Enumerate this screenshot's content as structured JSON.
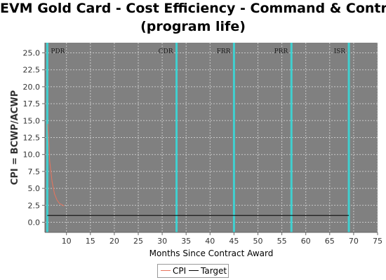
{
  "chart_data": {
    "type": "line",
    "title_line1": "EVM Gold Card - Cost Efficiency - Command & Control",
    "title_line2": "(program life)",
    "xlabel": "Months Since Contract Award",
    "ylabel": "CPI = BCWP/ACWP",
    "xlim": [
      5.5,
      75
    ],
    "ylim": [
      -1.5,
      26.5
    ],
    "x_ticks": [
      10,
      15,
      20,
      25,
      30,
      35,
      40,
      45,
      50,
      55,
      60,
      65,
      70,
      75
    ],
    "y_ticks": [
      0.0,
      2.5,
      5.0,
      7.5,
      10.0,
      12.5,
      15.0,
      17.5,
      20.0,
      22.5,
      25.0
    ],
    "x_tick_labels": [
      "10",
      "15",
      "20",
      "25",
      "30",
      "35",
      "40",
      "45",
      "50",
      "55",
      "60",
      "65",
      "70",
      "75"
    ],
    "y_tick_labels": [
      "0.0",
      "2.5",
      "5.0",
      "7.5",
      "10.0",
      "12.5",
      "15.0",
      "17.5",
      "20.0",
      "22.5",
      "25.0"
    ],
    "grid": true,
    "legend_position": "bottom",
    "milestones": [
      {
        "label": "PDR",
        "x": 6
      },
      {
        "label": "CDR",
        "x": 33
      },
      {
        "label": "FRR",
        "x": 45
      },
      {
        "label": "PRR",
        "x": 57
      },
      {
        "label": "ISR",
        "x": 69
      }
    ],
    "series": [
      {
        "name": "CPI",
        "color": "#e8735c",
        "x": [
          6.1,
          6.5,
          7.0,
          7.5,
          8.0,
          8.5,
          9.0,
          9.5
        ],
        "y": [
          14.5,
          9.0,
          6.0,
          4.2,
          3.3,
          2.8,
          2.6,
          2.4
        ]
      },
      {
        "name": "Target",
        "color": "#000000",
        "x": [
          6,
          69
        ],
        "y": [
          1.0,
          1.0
        ]
      }
    ],
    "colors": {
      "plot_background": "#808080",
      "grid": "#c8c8c8",
      "milestone": "#40d0d0",
      "milestone_label": "#1a1a1a"
    }
  }
}
